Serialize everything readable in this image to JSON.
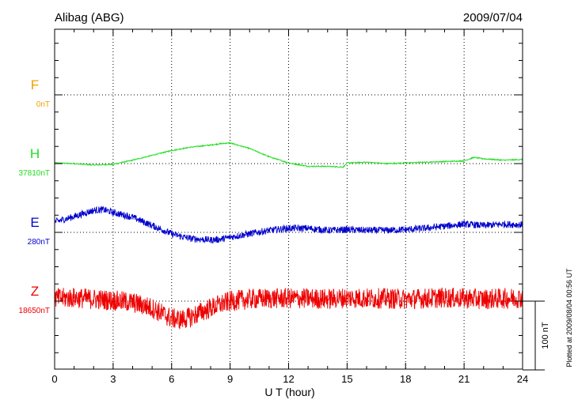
{
  "colors": {
    "F": "#f0a000",
    "H": "#22dd22",
    "E": "#0000cc",
    "Z": "#ee0000",
    "frame": "#000000"
  },
  "chart_data": {
    "type": "line",
    "title_left": "Alibag (ABG)",
    "title_right": "2009/07/04",
    "xlabel": "U T (hour)",
    "xlim": [
      0,
      24
    ],
    "xticks": [
      0,
      3,
      6,
      9,
      12,
      15,
      18,
      21,
      24
    ],
    "xtick_labels": [
      "0",
      "3",
      "6",
      "9",
      "12",
      "15",
      "18",
      "21",
      "24"
    ],
    "scale_bar_label": "100 nT",
    "scale_bar_nT": 100,
    "plotted_note": "Plotted at 2009/08/04 00:56 UT",
    "channels": [
      {
        "key": "F",
        "name": "F",
        "baseline_label": "0nT",
        "offset_nT": 300,
        "x": [],
        "values": []
      },
      {
        "key": "H",
        "name": "H",
        "baseline_label": "37810nT",
        "offset_nT": 200,
        "x": [
          0,
          1,
          2,
          3,
          4,
          5,
          6,
          7,
          8,
          8.5,
          9,
          10,
          11,
          12,
          13,
          14,
          14.8,
          15,
          16,
          17,
          18,
          19,
          20,
          21,
          21.5,
          22,
          23,
          24
        ],
        "values": [
          1,
          0,
          -2,
          -1,
          5,
          12,
          19,
          24,
          27,
          29,
          30,
          22,
          10,
          1,
          -4,
          -4,
          -5,
          1,
          2,
          0,
          1,
          2,
          3,
          4,
          9,
          7,
          5,
          6
        ],
        "noise_nT": 0.8
      },
      {
        "key": "E",
        "name": "E",
        "baseline_label": "280nT",
        "offset_nT": 100,
        "x": [
          0,
          1,
          2,
          2.5,
          3,
          4,
          5,
          6,
          6.5,
          7,
          7.5,
          8,
          8.5,
          9,
          10,
          11,
          12,
          13,
          14,
          15,
          16,
          17,
          18,
          19,
          20,
          21,
          22,
          23,
          24
        ],
        "values": [
          15,
          23,
          32,
          33,
          29,
          22,
          10,
          -2,
          -6,
          -9,
          -10,
          -11,
          -10,
          -7,
          -2,
          3,
          6,
          6,
          3,
          4,
          3,
          3,
          4,
          6,
          9,
          12,
          10,
          12,
          11
        ],
        "noise_nT": 5
      },
      {
        "key": "Z",
        "name": "Z",
        "baseline_label": "18650nT",
        "offset_nT": 0,
        "x": [
          0,
          1,
          2,
          3,
          4,
          5,
          5.5,
          6,
          6.5,
          7,
          7.5,
          8,
          9,
          10,
          11,
          12,
          13,
          14,
          15,
          16,
          17,
          18,
          19,
          20,
          21,
          22,
          23,
          24
        ],
        "values": [
          4,
          5,
          3,
          1,
          -2,
          -10,
          -18,
          -25,
          -27,
          -23,
          -16,
          -10,
          0,
          3,
          4,
          4,
          4,
          3,
          5,
          4,
          4,
          3,
          4,
          5,
          4,
          3,
          4,
          5
        ],
        "noise_nT": 15
      }
    ]
  }
}
